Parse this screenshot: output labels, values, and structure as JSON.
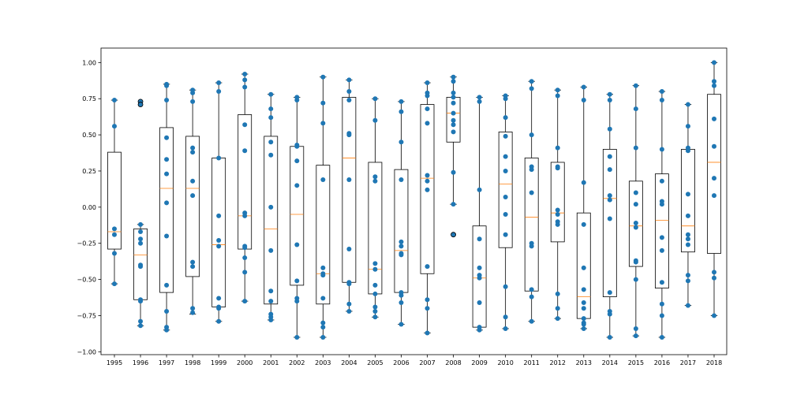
{
  "chart_data": {
    "type": "box",
    "title": "",
    "xlabel": "",
    "ylabel": "",
    "ylim": [
      -1.02,
      1.1
    ],
    "yticks": [
      -1.0,
      -0.75,
      -0.5,
      -0.25,
      0.0,
      0.25,
      0.5,
      0.75,
      1.0
    ],
    "ytick_labels": [
      "−1.00",
      "−0.75",
      "−0.50",
      "−0.25",
      "0.00",
      "0.25",
      "0.50",
      "0.75",
      "1.00"
    ],
    "categories": [
      "1995",
      "1996",
      "1997",
      "1998",
      "1999",
      "2000",
      "2001",
      "2002",
      "2003",
      "2004",
      "2005",
      "2006",
      "2007",
      "2008",
      "2009",
      "2010",
      "2011",
      "2012",
      "2013",
      "2014",
      "2015",
      "2016",
      "2017",
      "2018"
    ],
    "colors": {
      "points": "#1f77b4",
      "median": "#ff7f0e",
      "box": "#000000"
    },
    "boxes": [
      {
        "q1": -0.29,
        "median": -0.17,
        "q3": 0.38,
        "lo": -0.53,
        "hi": 0.74,
        "points": [
          0.74,
          0.56,
          -0.15,
          -0.19,
          -0.32,
          -0.53
        ],
        "fliers": []
      },
      {
        "q1": -0.64,
        "median": -0.33,
        "q3": -0.15,
        "lo": -0.82,
        "hi": -0.12,
        "points": [
          -0.12,
          -0.17,
          -0.22,
          -0.25,
          -0.4,
          -0.41,
          -0.64,
          -0.65,
          -0.79,
          -0.82
        ],
        "fliers": [
          0.73,
          0.71
        ]
      },
      {
        "q1": -0.59,
        "median": 0.13,
        "q3": 0.55,
        "lo": -0.85,
        "hi": 0.85,
        "points": [
          0.85,
          0.84,
          0.74,
          0.48,
          0.33,
          0.23,
          0.03,
          -0.2,
          -0.54,
          -0.72,
          -0.83,
          -0.85
        ],
        "fliers": []
      },
      {
        "q1": -0.48,
        "median": 0.13,
        "q3": 0.49,
        "lo": -0.74,
        "hi": 0.81,
        "points": [
          0.81,
          0.79,
          0.73,
          0.41,
          0.38,
          0.18,
          0.08,
          -0.38,
          -0.41,
          -0.7,
          -0.73
        ],
        "fliers": []
      },
      {
        "q1": -0.69,
        "median": -0.26,
        "q3": 0.34,
        "lo": -0.79,
        "hi": 0.86,
        "points": [
          0.86,
          0.8,
          0.34,
          -0.06,
          -0.23,
          -0.27,
          -0.63,
          -0.69,
          -0.7,
          -0.79
        ],
        "fliers": []
      },
      {
        "q1": -0.29,
        "median": -0.06,
        "q3": 0.64,
        "lo": -0.65,
        "hi": 0.92,
        "points": [
          0.92,
          0.88,
          0.83,
          0.57,
          0.39,
          -0.04,
          -0.06,
          -0.27,
          -0.28,
          -0.35,
          -0.45,
          -0.65
        ],
        "fliers": []
      },
      {
        "q1": -0.67,
        "median": -0.15,
        "q3": 0.49,
        "lo": -0.78,
        "hi": 0.78,
        "points": [
          0.78,
          0.68,
          0.62,
          0.45,
          0.36,
          0.0,
          -0.3,
          -0.58,
          -0.65,
          -0.74,
          -0.76,
          -0.78
        ],
        "fliers": []
      },
      {
        "q1": -0.54,
        "median": -0.05,
        "q3": 0.42,
        "lo": -0.9,
        "hi": 0.76,
        "points": [
          0.76,
          0.74,
          0.43,
          0.42,
          0.32,
          0.15,
          -0.26,
          -0.51,
          -0.63,
          -0.65,
          -0.9
        ],
        "fliers": []
      },
      {
        "q1": -0.67,
        "median": -0.46,
        "q3": 0.29,
        "lo": -0.9,
        "hi": 0.9,
        "points": [
          0.9,
          0.72,
          0.58,
          0.19,
          -0.42,
          -0.46,
          -0.47,
          -0.63,
          -0.8,
          -0.83,
          -0.9
        ],
        "fliers": []
      },
      {
        "q1": -0.52,
        "median": 0.34,
        "q3": 0.76,
        "lo": -0.72,
        "hi": 0.88,
        "points": [
          0.88,
          0.8,
          0.74,
          0.51,
          0.5,
          0.19,
          -0.29,
          -0.52,
          -0.53,
          -0.67,
          -0.72
        ],
        "fliers": []
      },
      {
        "q1": -0.6,
        "median": -0.43,
        "q3": 0.31,
        "lo": -0.76,
        "hi": 0.75,
        "points": [
          0.75,
          0.6,
          0.21,
          0.18,
          -0.39,
          -0.43,
          -0.54,
          -0.6,
          -0.69,
          -0.72,
          -0.76
        ],
        "fliers": []
      },
      {
        "q1": -0.59,
        "median": -0.3,
        "q3": 0.26,
        "lo": -0.81,
        "hi": 0.73,
        "points": [
          0.73,
          0.66,
          0.45,
          0.19,
          -0.24,
          -0.27,
          -0.32,
          -0.33,
          -0.59,
          -0.61,
          -0.66,
          -0.81
        ],
        "fliers": []
      },
      {
        "q1": -0.46,
        "median": 0.2,
        "q3": 0.71,
        "lo": -0.87,
        "hi": 0.86,
        "points": [
          0.86,
          0.79,
          0.77,
          0.68,
          0.58,
          0.22,
          0.18,
          0.12,
          -0.41,
          -0.64,
          -0.7,
          -0.87
        ],
        "fliers": []
      },
      {
        "q1": 0.45,
        "median": 0.65,
        "q3": 0.76,
        "lo": 0.02,
        "hi": 0.9,
        "points": [
          0.9,
          0.87,
          0.79,
          0.76,
          0.72,
          0.65,
          0.6,
          0.57,
          0.52,
          0.24,
          0.02
        ],
        "fliers": [
          -0.19
        ]
      },
      {
        "q1": -0.83,
        "median": -0.49,
        "q3": -0.13,
        "lo": -0.85,
        "hi": 0.76,
        "points": [
          0.76,
          0.73,
          0.12,
          -0.22,
          -0.42,
          -0.47,
          -0.49,
          -0.66,
          -0.83,
          -0.85
        ],
        "fliers": []
      },
      {
        "q1": -0.28,
        "median": 0.16,
        "q3": 0.52,
        "lo": -0.84,
        "hi": 0.77,
        "points": [
          0.77,
          0.75,
          0.62,
          0.49,
          0.35,
          0.25,
          0.07,
          -0.05,
          -0.19,
          -0.55,
          -0.76,
          -0.84
        ],
        "fliers": []
      },
      {
        "q1": -0.58,
        "median": -0.07,
        "q3": 0.34,
        "lo": -0.79,
        "hi": 0.87,
        "points": [
          0.87,
          0.82,
          0.5,
          0.28,
          0.26,
          0.1,
          -0.25,
          -0.27,
          -0.57,
          -0.62,
          -0.79
        ],
        "fliers": []
      },
      {
        "q1": -0.24,
        "median": -0.04,
        "q3": 0.31,
        "lo": -0.77,
        "hi": 0.81,
        "points": [
          0.81,
          0.77,
          0.41,
          0.28,
          0.27,
          -0.02,
          -0.05,
          -0.1,
          -0.12,
          -0.6,
          -0.7,
          -0.77
        ],
        "fliers": []
      },
      {
        "q1": -0.77,
        "median": -0.62,
        "q3": -0.04,
        "lo": -0.84,
        "hi": 0.83,
        "points": [
          0.83,
          0.74,
          0.17,
          -0.12,
          -0.42,
          -0.57,
          -0.66,
          -0.7,
          -0.77,
          -0.8,
          -0.81,
          -0.84
        ],
        "fliers": []
      },
      {
        "q1": -0.62,
        "median": 0.06,
        "q3": 0.4,
        "lo": -0.9,
        "hi": 0.78,
        "points": [
          0.78,
          0.74,
          0.54,
          0.35,
          0.26,
          0.08,
          0.05,
          -0.08,
          -0.59,
          -0.72,
          -0.74,
          -0.9
        ],
        "fliers": []
      },
      {
        "q1": -0.41,
        "median": -0.13,
        "q3": 0.18,
        "lo": -0.89,
        "hi": 0.84,
        "points": [
          0.84,
          0.68,
          0.41,
          0.1,
          0.02,
          -0.11,
          -0.14,
          -0.37,
          -0.38,
          -0.5,
          -0.84,
          -0.89
        ],
        "fliers": []
      },
      {
        "q1": -0.56,
        "median": -0.09,
        "q3": 0.23,
        "lo": -0.9,
        "hi": 0.8,
        "points": [
          0.8,
          0.74,
          0.4,
          0.18,
          0.04,
          0.02,
          -0.21,
          -0.3,
          -0.52,
          -0.67,
          -0.75,
          -0.9
        ],
        "fliers": []
      },
      {
        "q1": -0.31,
        "median": -0.13,
        "q3": 0.4,
        "lo": -0.68,
        "hi": 0.71,
        "points": [
          0.71,
          0.56,
          0.41,
          0.39,
          0.09,
          -0.06,
          -0.19,
          -0.22,
          -0.26,
          -0.47,
          -0.51,
          -0.68
        ],
        "fliers": []
      },
      {
        "q1": -0.32,
        "median": 0.31,
        "q3": 0.78,
        "lo": -0.75,
        "hi": 1.0,
        "points": [
          1.0,
          0.87,
          0.84,
          0.61,
          0.42,
          0.2,
          0.08,
          -0.45,
          -0.49,
          -0.75
        ],
        "fliers": []
      }
    ]
  }
}
